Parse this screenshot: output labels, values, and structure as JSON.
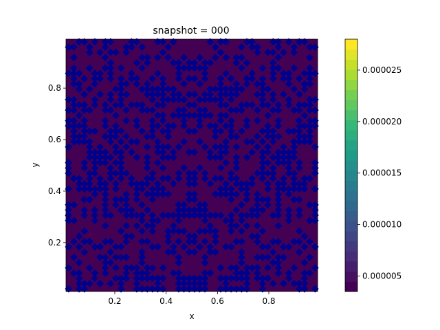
{
  "figure": {
    "title": "snapshot = 000"
  },
  "chart_data": {
    "type": "heatmap",
    "title": "snapshot = 000",
    "xlabel": "x",
    "ylabel": "y",
    "xlim": [
      0.01,
      0.99
    ],
    "ylim": [
      0.01,
      0.99
    ],
    "x_ticks": [
      "0.2",
      "0.4",
      "0.6",
      "0.8"
    ],
    "y_ticks": [
      "0.2",
      "0.4",
      "0.6",
      "0.8"
    ],
    "x_tick_values": [
      0.2,
      0.4,
      0.6,
      0.8
    ],
    "y_tick_values": [
      0.2,
      0.4,
      0.6,
      0.8
    ],
    "grid": false,
    "colorbar": {
      "range": [
        3.5e-06,
        2.8e-05
      ],
      "tick_labels": [
        "0.000005",
        "0.000010",
        "0.000015",
        "0.000020",
        "0.000025"
      ],
      "tick_values": [
        5e-06,
        1e-05,
        1.5e-05,
        2e-05,
        2.5e-05
      ],
      "colormap": "viridis",
      "levels": 25
    },
    "field_description_values": {
      "background_value": 3.5e-06,
      "pattern_value": 5e-06,
      "grid_size": 48
    },
    "colors": {
      "background": "#440154",
      "pattern": "#00008b"
    }
  }
}
